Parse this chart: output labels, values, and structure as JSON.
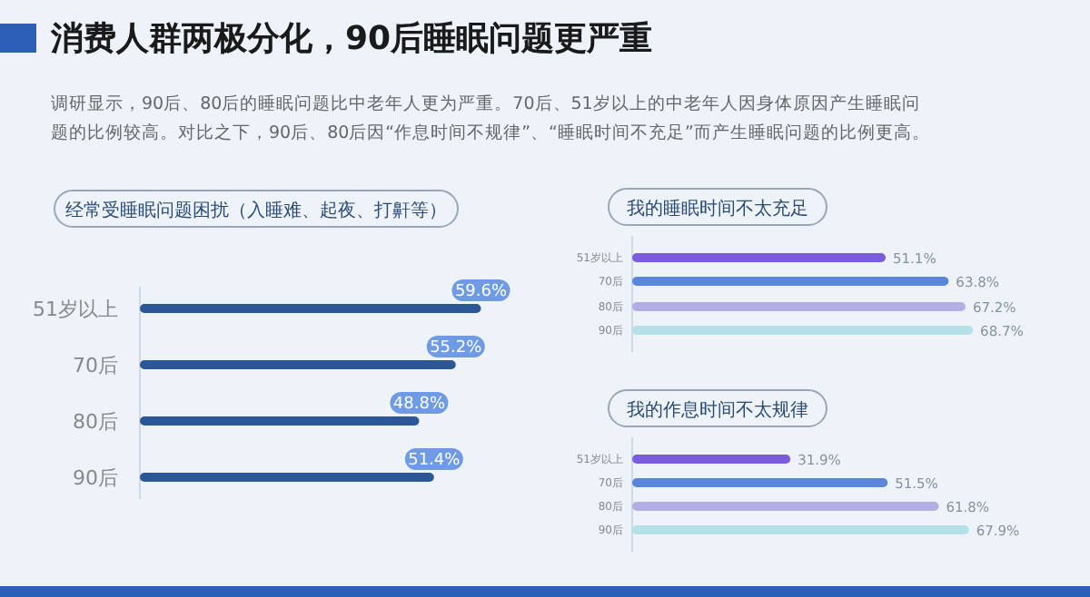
{
  "chart_data": [
    {
      "type": "bar",
      "orientation": "horizontal",
      "title": "消费人群两极分化，90后睡眠问题更严重",
      "subtitle": "调研显示，90后、80后的睡眠问题比中老年人更为严重。70后、51岁以上的中老年人因身体原因产生睡眠问题的比例较高。对比之下，90后、80后因“作息时间不规律”、“睡眠时间不充足”而产生睡眠问题的比例更高。",
      "xlabel": "经常受睡眠问题困扰（入睡难、起夜、打鼾等）",
      "categories": [
        "51岁以上",
        "70后",
        "80后",
        "90后"
      ],
      "values": [
        59.6,
        55.2,
        48.8,
        51.4
      ],
      "value_labels": [
        "59.6%",
        "55.2%",
        "48.8%",
        "51.4%"
      ],
      "color": "#2b5797"
    },
    {
      "type": "bar",
      "orientation": "horizontal",
      "xlabel": "我的睡眠时间不太充足",
      "categories": [
        "51岁以上",
        "70后",
        "80后",
        "90后"
      ],
      "values": [
        51.1,
        63.8,
        67.2,
        68.7
      ],
      "value_labels": [
        "51.1%",
        "63.8%",
        "67.2%",
        "68.7%"
      ],
      "colors": [
        "#7b5ce0",
        "#5a86dc",
        "#b3aee6",
        "#b4e0e8"
      ]
    },
    {
      "type": "bar",
      "orientation": "horizontal",
      "xlabel": "我的作息时间不太规律",
      "categories": [
        "51岁以上",
        "70后",
        "80后",
        "90后"
      ],
      "values": [
        31.9,
        51.5,
        61.8,
        67.9
      ],
      "value_labels": [
        "31.9%",
        "51.5%",
        "61.8%",
        "67.9%"
      ],
      "colors": [
        "#7b5ce0",
        "#5a86dc",
        "#b3aee6",
        "#b4e0e8"
      ]
    }
  ]
}
